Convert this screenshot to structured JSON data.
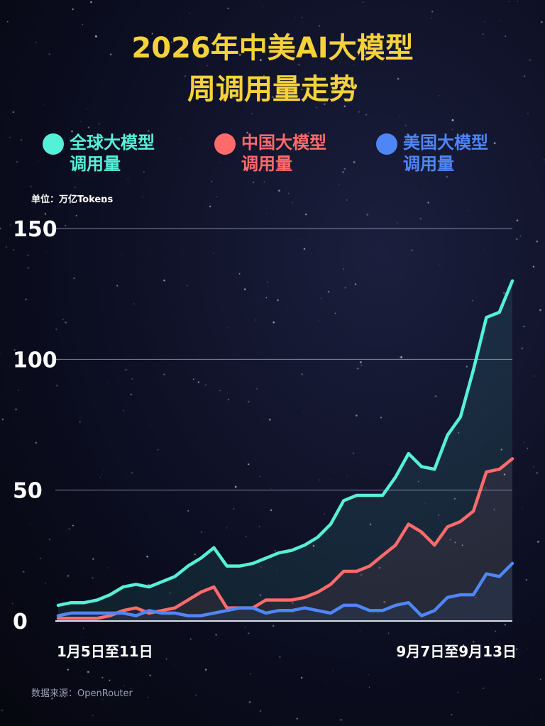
{
  "title_line1": "2026年中美AI大模型",
  "title_line2": "周调用量走势",
  "unit_label": "单位：万亿Tokens",
  "source_label": "数据来源：OpenRouter",
  "x_start_label": "1月5日至11日",
  "x_end_label": "9月7日至9月13日",
  "legend": [
    {
      "label": "全球大模型\n调用量",
      "color": "#55f0d8"
    },
    {
      "label": "中国大模型\n调用量",
      "color": "#ff6b6b"
    },
    {
      "label": "美国大模型\n调用量",
      "color": "#4f86f7"
    }
  ],
  "chart_data": {
    "type": "line",
    "ylim": [
      0,
      150
    ],
    "yticks": [
      0,
      50,
      100,
      150
    ],
    "grid": true,
    "series": [
      {
        "name": "全球大模型调用量",
        "color": "#55f0d8",
        "values": [
          6,
          7,
          7,
          8,
          10,
          13,
          14,
          13,
          15,
          17,
          21,
          24,
          28,
          21,
          21,
          22,
          24,
          26,
          27,
          29,
          32,
          37,
          46,
          48,
          48,
          48,
          55,
          64,
          59,
          58,
          71,
          78,
          96,
          116,
          118,
          130
        ]
      },
      {
        "name": "中国大模型调用量",
        "color": "#ff6b6b",
        "values": [
          1,
          1,
          1,
          1,
          2,
          4,
          5,
          3,
          4,
          5,
          8,
          11,
          13,
          5,
          5,
          5,
          8,
          8,
          8,
          9,
          11,
          14,
          19,
          19,
          21,
          25,
          29,
          37,
          34,
          29,
          36,
          38,
          42,
          57,
          58,
          62
        ]
      },
      {
        "name": "美国大模型调用量",
        "color": "#4f86f7",
        "values": [
          2,
          3,
          3,
          3,
          3,
          3,
          2,
          4,
          3,
          3,
          2,
          2,
          3,
          4,
          5,
          5,
          3,
          4,
          4,
          5,
          4,
          3,
          6,
          6,
          4,
          4,
          6,
          7,
          2,
          4,
          9,
          10,
          10,
          18,
          17,
          22
        ]
      }
    ]
  }
}
